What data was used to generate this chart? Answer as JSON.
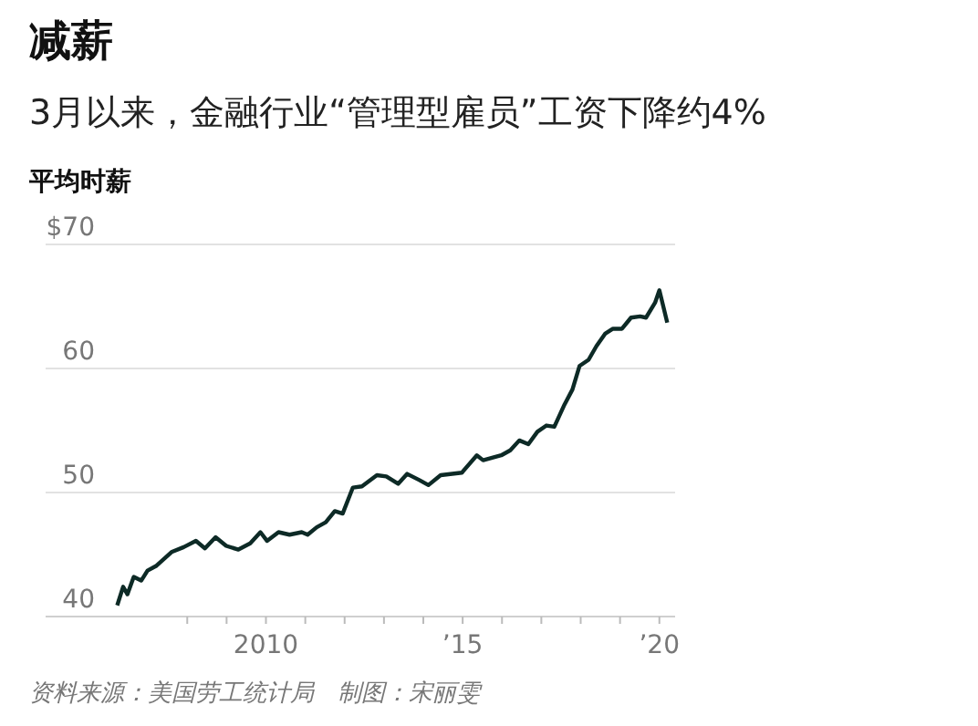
{
  "chart_data": {
    "type": "line",
    "title": "减薪",
    "subtitle": "3月以来，金融行业“管理型雇员”工资下降约4%",
    "ylabel": "平均时薪",
    "x": [
      2006.22,
      2006.37,
      2006.48,
      2006.64,
      2006.83,
      2006.99,
      2007.22,
      2007.6,
      2007.91,
      2008.22,
      2008.45,
      2008.72,
      2008.99,
      2009.3,
      2009.6,
      2009.86,
      2010.03,
      2010.32,
      2010.6,
      2010.91,
      2011.06,
      2011.29,
      2011.52,
      2011.75,
      2011.95,
      2012.21,
      2012.44,
      2012.82,
      2013.06,
      2013.36,
      2013.59,
      2013.9,
      2014.13,
      2014.44,
      2014.98,
      2015.36,
      2015.52,
      2015.98,
      2016.21,
      2016.44,
      2016.67,
      2016.9,
      2017.13,
      2017.33,
      2017.59,
      2017.79,
      2017.97,
      2018.2,
      2018.4,
      2018.62,
      2018.82,
      2019.05,
      2019.28,
      2019.51,
      2019.66,
      2019.89,
      2020.0,
      2020.2
    ],
    "series": [
      {
        "color": "#0d2a26",
        "values": [
          40.9,
          42.4,
          41.8,
          43.2,
          42.9,
          43.7,
          44.1,
          45.2,
          45.6,
          46.1,
          45.5,
          46.4,
          45.7,
          45.4,
          45.9,
          46.8,
          46.1,
          46.8,
          46.6,
          46.8,
          46.6,
          47.2,
          47.6,
          48.5,
          48.3,
          50.4,
          50.5,
          51.4,
          51.3,
          50.7,
          51.5,
          51.0,
          50.6,
          51.4,
          51.6,
          53.0,
          52.6,
          53.0,
          53.4,
          54.2,
          53.9,
          54.9,
          55.4,
          55.3,
          57.1,
          58.3,
          60.2,
          60.7,
          61.8,
          62.8,
          63.2,
          63.2,
          64.1,
          64.2,
          64.1,
          65.3,
          66.3,
          63.7
        ]
      }
    ],
    "xlim": [
      2004.4,
      2020.4
    ],
    "xticks": [
      {
        "value": 2008,
        "label": null
      },
      {
        "value": 2009,
        "label": null
      },
      2010,
      {
        "value": 2011,
        "label": null
      },
      {
        "value": 2012,
        "label": null
      },
      {
        "value": 2013,
        "label": null
      },
      {
        "value": 2014,
        "label": null
      },
      {
        "value": 2015,
        "label": "’15"
      },
      {
        "value": 2016,
        "label": null
      },
      {
        "value": 2017,
        "label": null
      },
      {
        "value": 2018,
        "label": null
      },
      {
        "value": 2019,
        "label": null
      },
      {
        "value": 2020,
        "label": "’20"
      }
    ],
    "ylim": [
      40,
      70
    ],
    "yticks": [
      {
        "value": 40,
        "label": "40"
      },
      {
        "value": 50,
        "label": "50"
      },
      {
        "value": 60,
        "label": "60"
      },
      {
        "value": 70,
        "label": "$70"
      }
    ],
    "grid": "y",
    "marker": "none",
    "line_style": "solid",
    "annotations": [
      "资料来源：美国劳工统计局　制图：宋丽雯"
    ]
  }
}
